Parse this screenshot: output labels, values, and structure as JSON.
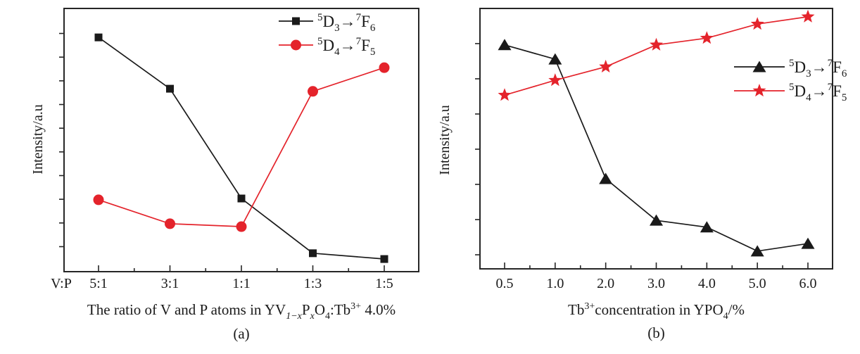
{
  "figure": {
    "background": "#ffffff",
    "description": "Two-panel luminescence intensity line chart"
  },
  "colors": {
    "axis": "#262626",
    "black_series": "#1a1a1a",
    "red_series": "#e4232b",
    "text": "#1a1a1a"
  },
  "chart_data": [
    {
      "id": "a",
      "type": "line",
      "caption": "(a)",
      "ylabel": "Intensity/a.u",
      "x_axis_prefix": "V:P",
      "xlabel_text": "The ratio of V and P atoms in YV1-xPxO4:Tb3+ 4.0%",
      "xlabel_parts": [
        [
          "n",
          "The ratio of V and P atoms in YV"
        ],
        [
          "subi",
          "1−x"
        ],
        [
          "n",
          "P"
        ],
        [
          "subi",
          "x"
        ],
        [
          "n",
          "O"
        ],
        [
          "sub",
          "4"
        ],
        [
          "n",
          ":Tb"
        ],
        [
          "sup",
          "3+"
        ],
        [
          "n",
          " 4.0%"
        ]
      ],
      "categories": [
        "5:1",
        "3:1",
        "1:1",
        "1:3",
        "1:5"
      ],
      "series": [
        {
          "label": "5D3→7F6",
          "name_parts": [
            [
              "sup",
              "5"
            ],
            [
              "n",
              "D"
            ],
            [
              "sub",
              "3"
            ],
            [
              "n",
              "→"
            ],
            [
              "sup",
              "7"
            ],
            [
              "n",
              "F"
            ],
            [
              "sub",
              "6"
            ]
          ],
          "marker": "square",
          "color": "#1a1a1a",
          "values": [
            0.89,
            0.695,
            0.278,
            0.07,
            0.048
          ]
        },
        {
          "label": "5D4→7F5",
          "name_parts": [
            [
              "sup",
              "5"
            ],
            [
              "n",
              "D"
            ],
            [
              "sub",
              "4"
            ],
            [
              "n",
              "→"
            ],
            [
              "sup",
              "7"
            ],
            [
              "n",
              "F"
            ],
            [
              "sub",
              "5"
            ]
          ],
          "marker": "circle",
          "color": "#e4232b",
          "values": [
            0.273,
            0.182,
            0.171,
            0.685,
            0.775
          ]
        }
      ],
      "ylim": [
        0,
        1
      ],
      "grid": false,
      "legend_position": "top-right",
      "y_ticks": {
        "count": 10,
        "from": 0.095,
        "to": 0.905
      },
      "x_minor_ticks": true
    },
    {
      "id": "b",
      "type": "line",
      "caption": "(b)",
      "ylabel": "Intensity/a.u",
      "x_axis_prefix": "",
      "xlabel_text": "Tb3+concentration in YPO4/%",
      "xlabel_parts": [
        [
          "n",
          "Tb"
        ],
        [
          "sup",
          "3+"
        ],
        [
          "n",
          "concentration in YPO"
        ],
        [
          "sub",
          "4"
        ],
        [
          "n",
          "/%"
        ]
      ],
      "categories": [
        "0.5",
        "1.0",
        "2.0",
        "3.0",
        "4.0",
        "5.0",
        "6.0"
      ],
      "series": [
        {
          "label": "5D3→7F6",
          "name_parts": [
            [
              "sup",
              "5"
            ],
            [
              "n",
              "D"
            ],
            [
              "sub",
              "3"
            ],
            [
              "n",
              "→"
            ],
            [
              "sup",
              "7"
            ],
            [
              "n",
              "F"
            ],
            [
              "sub",
              "6"
            ]
          ],
          "marker": "triangle",
          "color": "#1a1a1a",
          "values": [
            0.86,
            0.805,
            0.346,
            0.186,
            0.16,
            0.068,
            0.097
          ]
        },
        {
          "label": "5D4→7F5",
          "name_parts": [
            [
              "sup",
              "5"
            ],
            [
              "n",
              "D"
            ],
            [
              "sub",
              "4"
            ],
            [
              "n",
              "→"
            ],
            [
              "sup",
              "7"
            ],
            [
              "n",
              "F"
            ],
            [
              "sub",
              "5"
            ]
          ],
          "marker": "star",
          "color": "#e4232b",
          "values": [
            0.667,
            0.724,
            0.776,
            0.86,
            0.886,
            0.94,
            0.968
          ]
        }
      ],
      "ylim": [
        0,
        1
      ],
      "grid": false,
      "legend_position": "center-right",
      "y_ticks": {
        "count": 7,
        "from": 0.054,
        "to": 0.865
      },
      "x_minor_ticks": true
    }
  ]
}
